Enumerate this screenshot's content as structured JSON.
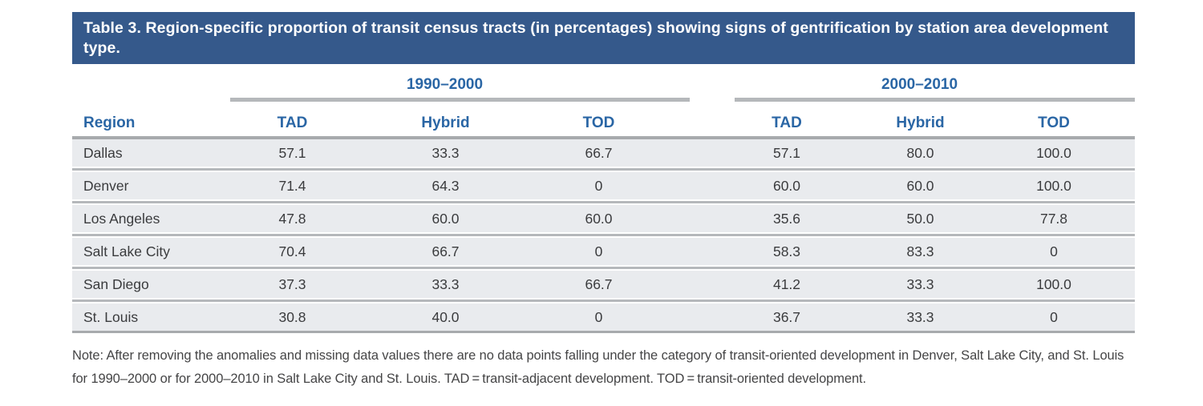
{
  "title": "Table 3. Region-specific proportion of transit census tracts (in percentages) showing signs of gentrification by station area development type.",
  "table": {
    "period_groups": [
      "1990–2000",
      "2000–2010"
    ],
    "region_header": "Region",
    "sub_headers": [
      "TAD",
      "Hybrid",
      "TOD",
      "TAD",
      "Hybrid",
      "TOD"
    ],
    "rows": [
      {
        "region": "Dallas",
        "values": [
          "57.1",
          "33.3",
          "66.7",
          "57.1",
          "80.0",
          "100.0"
        ]
      },
      {
        "region": "Denver",
        "values": [
          "71.4",
          "64.3",
          "0",
          "60.0",
          "60.0",
          "100.0"
        ]
      },
      {
        "region": "Los Angeles",
        "values": [
          "47.8",
          "60.0",
          "60.0",
          "35.6",
          "50.0",
          "77.8"
        ]
      },
      {
        "region": "Salt Lake City",
        "values": [
          "70.4",
          "66.7",
          "0",
          "58.3",
          "83.3",
          "0"
        ]
      },
      {
        "region": "San Diego",
        "values": [
          "37.3",
          "33.3",
          "66.7",
          "41.2",
          "33.3",
          "100.0"
        ]
      },
      {
        "region": "St. Louis",
        "values": [
          "30.8",
          "40.0",
          "0",
          "36.7",
          "33.3",
          "0"
        ]
      }
    ]
  },
  "note": "Note: After removing the anomalies and missing data values there are no data points falling under the category of transit-oriented development in Denver, Salt Lake City, and St. Louis for 1990–2000 or for 2000–2010 in Salt Lake City and St. Louis. TAD = transit-adjacent development. TOD = transit-oriented development.",
  "colors": {
    "title_bar_bg": "#35598b",
    "title_text": "#ffffff",
    "accent_blue": "#2a66a5",
    "row_bg": "#e9ebee",
    "rule_gray": "#a7aaad",
    "separator_gray": "#b5b8bb",
    "body_text": "#3a3b3d"
  }
}
